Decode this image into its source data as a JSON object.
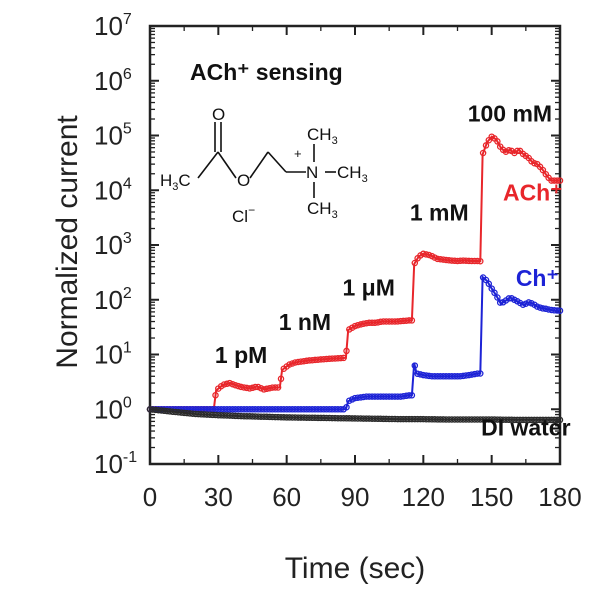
{
  "chart_data": {
    "type": "line",
    "title": "ACh⁺ sensing",
    "xlabel": "Time (sec)",
    "ylabel": "Normalized current",
    "xlim": [
      0,
      180
    ],
    "ylim_log10": [
      -1,
      7
    ],
    "yscale": "log",
    "x_ticks": [
      "0",
      "30",
      "60",
      "90",
      "120",
      "150",
      "180"
    ],
    "y_ticks": [
      {
        "base": "10",
        "exp": "7"
      },
      {
        "base": "10",
        "exp": "6"
      },
      {
        "base": "10",
        "exp": "5"
      },
      {
        "base": "10",
        "exp": "4"
      },
      {
        "base": "10",
        "exp": "3"
      },
      {
        "base": "10",
        "exp": "2"
      },
      {
        "base": "10",
        "exp": "1"
      },
      {
        "base": "10",
        "exp": "0"
      },
      {
        "base": "10",
        "exp": "-1"
      }
    ],
    "series": [
      {
        "name": "ACh⁺",
        "color": "#e8262b",
        "points": [
          [
            0,
            1
          ],
          [
            5,
            1
          ],
          [
            10,
            1
          ],
          [
            15,
            1
          ],
          [
            20,
            1
          ],
          [
            25,
            1
          ],
          [
            28,
            1
          ],
          [
            29,
            2.2
          ],
          [
            32,
            2.8
          ],
          [
            35,
            3.0
          ],
          [
            38,
            2.7
          ],
          [
            41,
            2.5
          ],
          [
            44,
            2.4
          ],
          [
            47,
            2.6
          ],
          [
            50,
            2.3
          ],
          [
            54,
            2.5
          ],
          [
            57,
            2.5
          ],
          [
            58,
            5.2
          ],
          [
            61,
            6.5
          ],
          [
            64,
            7.2
          ],
          [
            67,
            7.5
          ],
          [
            70,
            7.8
          ],
          [
            73,
            8.0
          ],
          [
            76,
            8.2
          ],
          [
            80,
            8.4
          ],
          [
            84,
            8.6
          ],
          [
            86,
            8.7
          ],
          [
            87,
            28
          ],
          [
            90,
            33
          ],
          [
            93,
            36
          ],
          [
            96,
            38
          ],
          [
            99,
            38
          ],
          [
            102,
            40
          ],
          [
            105,
            40
          ],
          [
            108,
            40
          ],
          [
            111,
            41
          ],
          [
            114,
            42
          ],
          [
            115,
            42
          ],
          [
            116,
            450
          ],
          [
            118,
            620
          ],
          [
            120,
            690
          ],
          [
            123,
            650
          ],
          [
            126,
            560
          ],
          [
            129,
            540
          ],
          [
            132,
            520
          ],
          [
            135,
            510
          ],
          [
            138,
            520
          ],
          [
            141,
            510
          ],
          [
            144,
            510
          ],
          [
            145,
            505
          ],
          [
            146,
            45000
          ],
          [
            148,
            75000
          ],
          [
            150,
            95000
          ],
          [
            152,
            85000
          ],
          [
            154,
            60000
          ],
          [
            156,
            50000
          ],
          [
            158,
            55000
          ],
          [
            160,
            48000
          ],
          [
            162,
            55000
          ],
          [
            164,
            45000
          ],
          [
            166,
            40000
          ],
          [
            168,
            32000
          ],
          [
            170,
            30000
          ],
          [
            172,
            25000
          ],
          [
            174,
            19000
          ],
          [
            176,
            15000
          ],
          [
            178,
            15000
          ],
          [
            180,
            15000
          ]
        ]
      },
      {
        "name": "Ch⁺",
        "color": "#1d23d6",
        "points": [
          [
            0,
            1
          ],
          [
            10,
            1
          ],
          [
            20,
            1
          ],
          [
            30,
            1
          ],
          [
            40,
            1
          ],
          [
            50,
            1
          ],
          [
            60,
            1
          ],
          [
            70,
            1
          ],
          [
            80,
            1
          ],
          [
            86,
            1
          ],
          [
            87,
            1.4
          ],
          [
            90,
            1.6
          ],
          [
            95,
            1.7
          ],
          [
            100,
            1.7
          ],
          [
            105,
            1.7
          ],
          [
            110,
            1.7
          ],
          [
            114,
            1.8
          ],
          [
            115,
            1.8
          ],
          [
            116,
            7.0
          ],
          [
            117,
            4.5
          ],
          [
            120,
            4.2
          ],
          [
            124,
            4.0
          ],
          [
            128,
            4.0
          ],
          [
            132,
            4.0
          ],
          [
            136,
            4.0
          ],
          [
            140,
            4.2
          ],
          [
            144,
            4.5
          ],
          [
            145,
            4.5
          ],
          [
            146,
            260
          ],
          [
            148,
            220
          ],
          [
            150,
            160
          ],
          [
            152,
            120
          ],
          [
            154,
            85
          ],
          [
            156,
            95
          ],
          [
            158,
            110
          ],
          [
            160,
            100
          ],
          [
            162,
            90
          ],
          [
            164,
            80
          ],
          [
            166,
            90
          ],
          [
            168,
            85
          ],
          [
            170,
            75
          ],
          [
            172,
            70
          ],
          [
            174,
            68
          ],
          [
            176,
            65
          ],
          [
            178,
            64
          ],
          [
            180,
            63
          ]
        ]
      },
      {
        "name": "DI water",
        "color": "#2b2b2b",
        "points": [
          [
            0,
            1
          ],
          [
            10,
            0.9
          ],
          [
            20,
            0.82
          ],
          [
            30,
            0.78
          ],
          [
            40,
            0.75
          ],
          [
            50,
            0.73
          ],
          [
            60,
            0.71
          ],
          [
            70,
            0.7
          ],
          [
            80,
            0.69
          ],
          [
            90,
            0.68
          ],
          [
            100,
            0.67
          ],
          [
            110,
            0.66
          ],
          [
            120,
            0.66
          ],
          [
            130,
            0.65
          ],
          [
            140,
            0.65
          ],
          [
            150,
            0.65
          ],
          [
            160,
            0.64
          ],
          [
            170,
            0.64
          ],
          [
            180,
            0.64
          ]
        ]
      }
    ],
    "annotations": [
      {
        "text": "1 pM",
        "x": 40,
        "y": 7,
        "color": "#111111"
      },
      {
        "text": "1 nM",
        "x": 68,
        "y": 28,
        "color": "#111111"
      },
      {
        "text": "1 μM",
        "x": 96,
        "y": 120,
        "color": "#111111"
      },
      {
        "text": "1 mM",
        "x": 127,
        "y": 2800,
        "color": "#111111"
      },
      {
        "text": "100 mM",
        "x": 158,
        "y": 180000,
        "color": "#111111"
      },
      {
        "text": "ACh⁺",
        "x": 168,
        "y": 6500,
        "color": "#e8262b"
      },
      {
        "text": "Ch⁺",
        "x": 170,
        "y": 180,
        "color": "#1d23d6"
      },
      {
        "text": "DI water",
        "x": 165,
        "y": 0.33,
        "color": "#111111"
      }
    ],
    "molecule_labels": {
      "o_top": "O",
      "o_ester": "O",
      "h3c": "H",
      "h3c_sub": "3",
      "h3c_c": "C",
      "ch3_top": "CH",
      "ch3_top_sub": "3",
      "ch3_right": "CH",
      "ch3_right_sub": "3",
      "ch3_bottom": "CH",
      "ch3_bottom_sub": "3",
      "n": "N",
      "plus": "+",
      "cl": "Cl",
      "cl_charge": "−"
    }
  }
}
